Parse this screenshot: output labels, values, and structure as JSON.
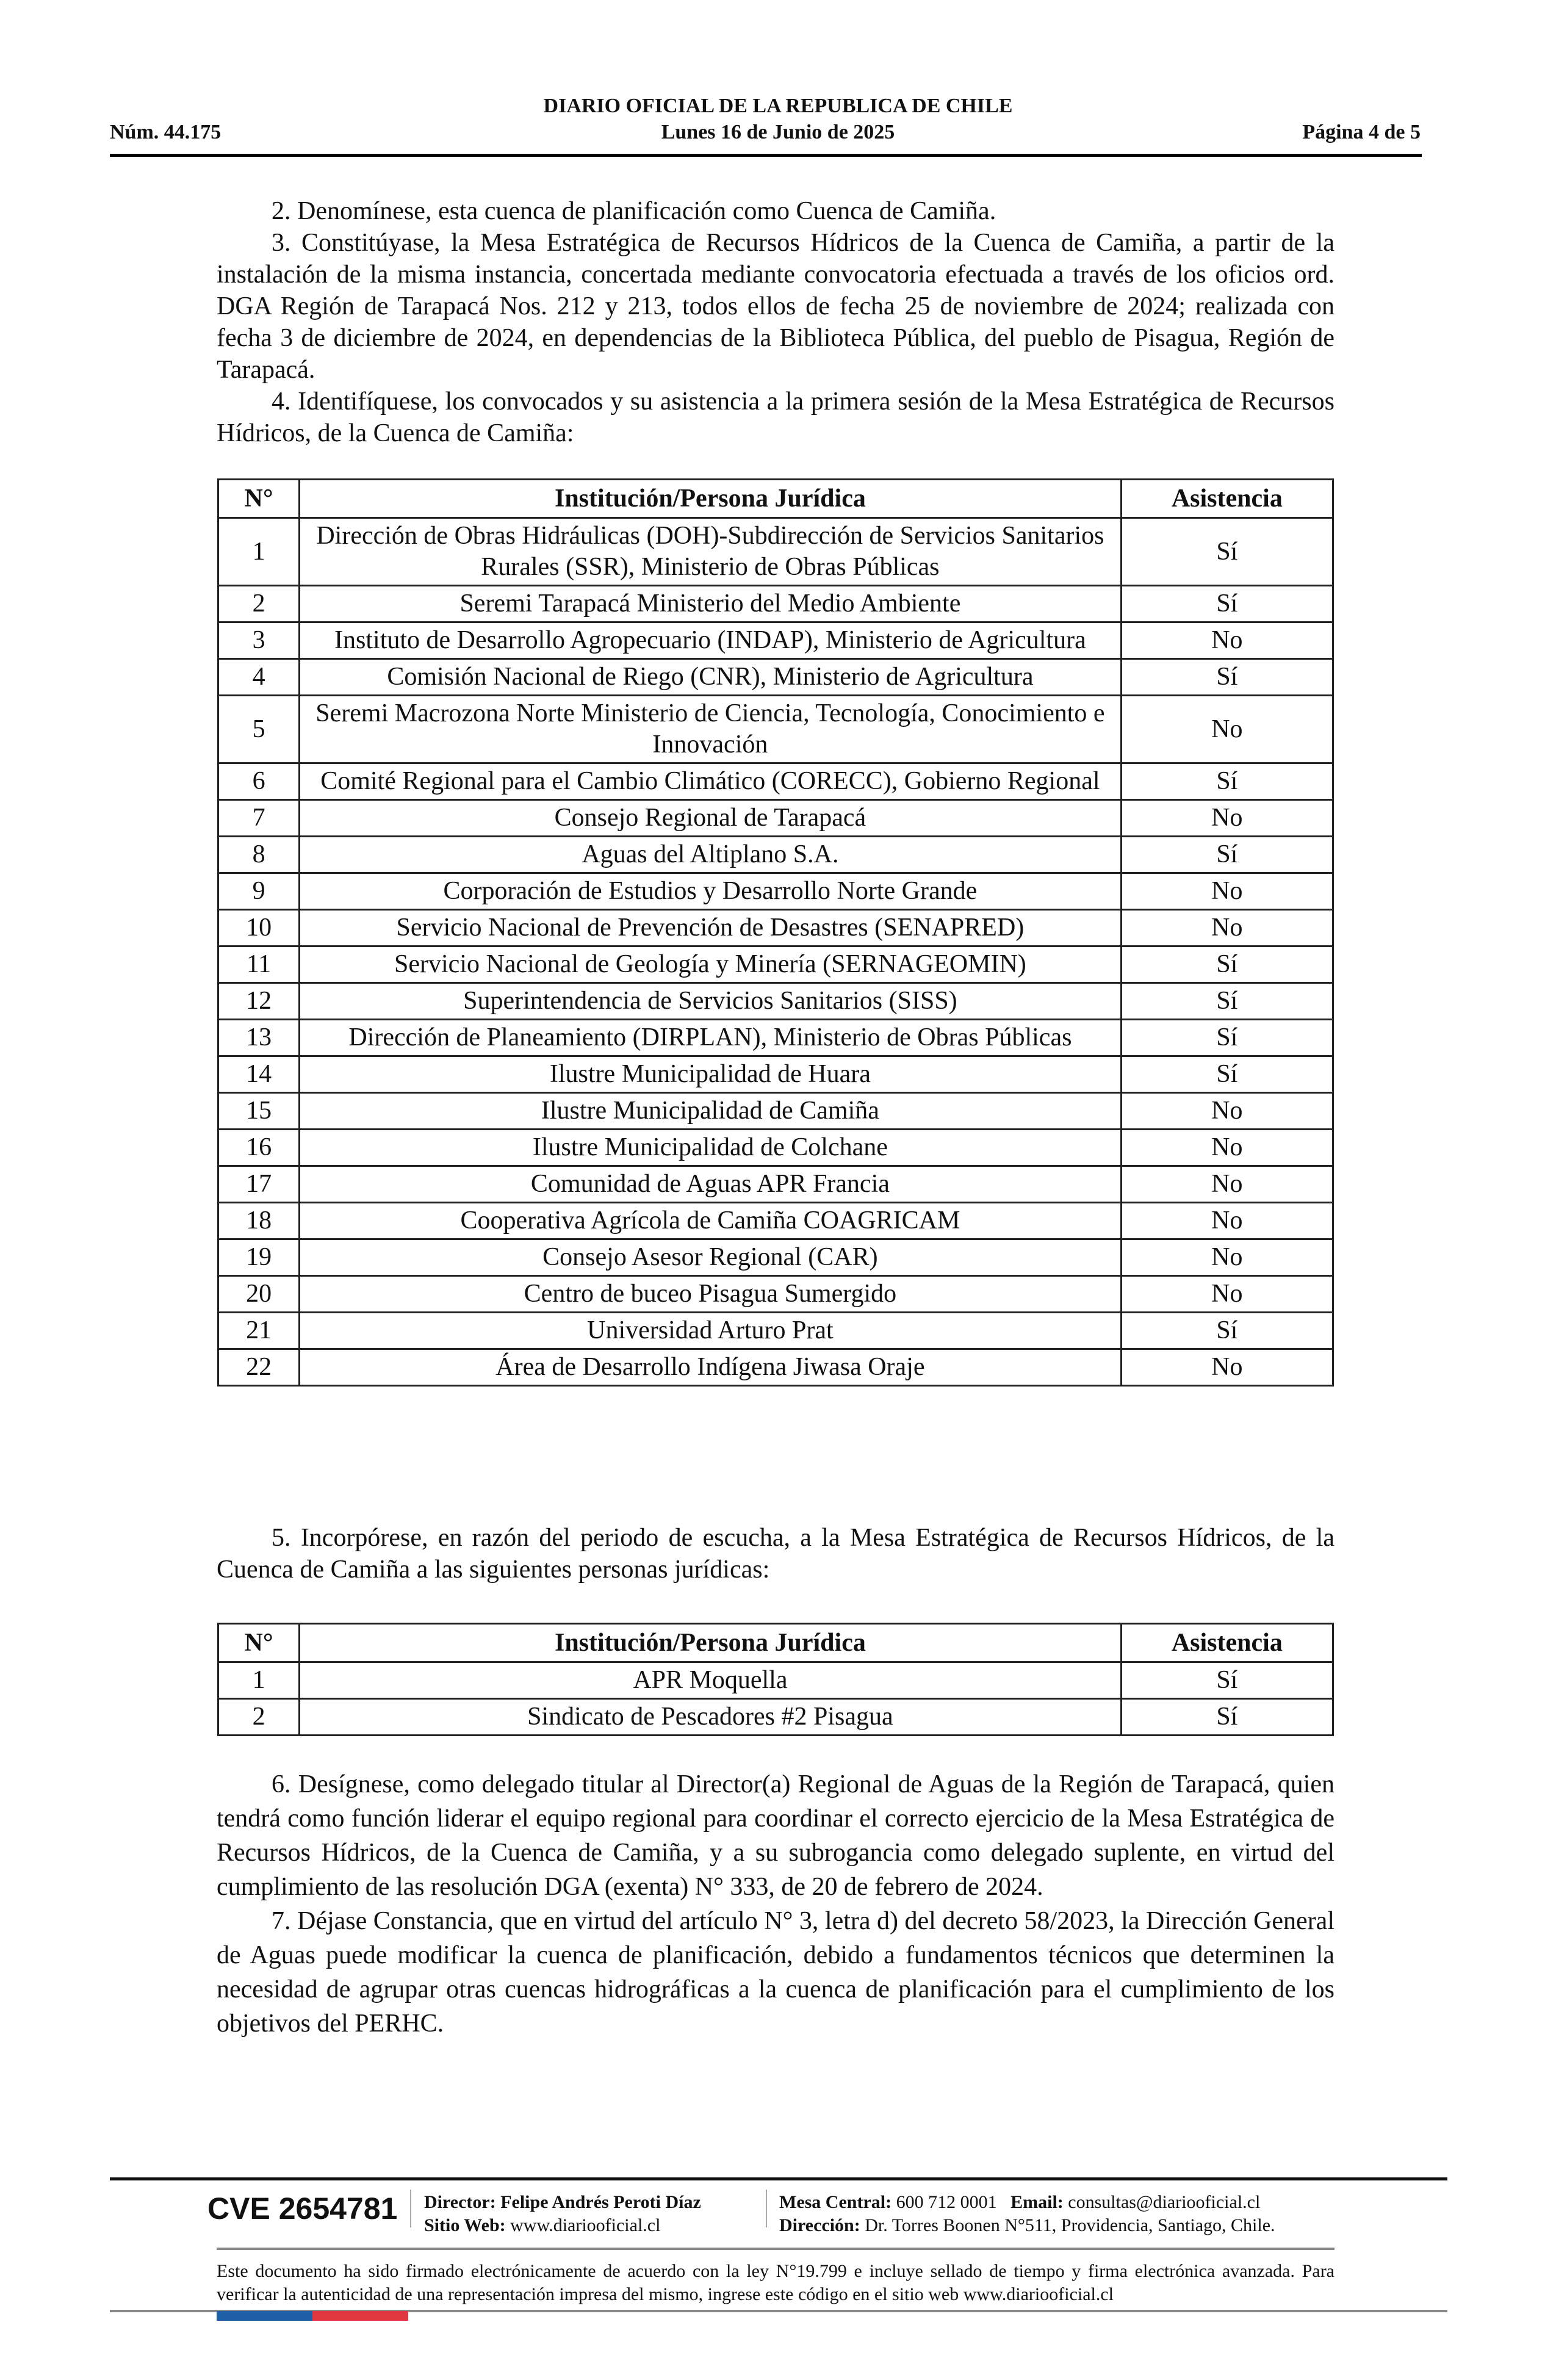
{
  "header": {
    "title": "DIARIO OFICIAL DE LA REPUBLICA DE CHILE",
    "number": "Núm. 44.175",
    "date": "Lunes 16 de Junio de 2025",
    "page": "Página 4 de 5"
  },
  "paragraphs_top": [
    "2. Denomínese, esta cuenca de planificación como Cuenca de Camiña.",
    "3. Constitúyase, la Mesa Estratégica de Recursos Hídricos de la Cuenca de Camiña, a partir de la instalación de la misma instancia, concertada mediante convocatoria efectuada a través de los oficios ord. DGA Región de Tarapacá Nos. 212 y 213, todos ellos de fecha 25 de noviembre de 2024; realizada con fecha 3 de diciembre de 2024, en dependencias de la Biblioteca Pública, del pueblo de Pisagua, Región de Tarapacá.",
    "4. Identifíquese, los convocados y su asistencia a la primera sesión de la Mesa Estratégica de Recursos Hídricos, de la Cuenca de Camiña:"
  ],
  "table1": {
    "headers": [
      "N°",
      "Institución/Persona Jurídica",
      "Asistencia"
    ],
    "rows": [
      [
        "1",
        "Dirección de Obras Hidráulicas (DOH)-Subdirección de Servicios Sanitarios Rurales (SSR), Ministerio de Obras Públicas",
        "Sí"
      ],
      [
        "2",
        "Seremi Tarapacá Ministerio del Medio Ambiente",
        "Sí"
      ],
      [
        "3",
        "Instituto de Desarrollo Agropecuario (INDAP), Ministerio de Agricultura",
        "No"
      ],
      [
        "4",
        "Comisión Nacional de Riego (CNR), Ministerio de Agricultura",
        "Sí"
      ],
      [
        "5",
        "Seremi Macrozona Norte Ministerio de Ciencia, Tecnología, Conocimiento e Innovación",
        "No"
      ],
      [
        "6",
        "Comité Regional para el Cambio Climático (CORECC), Gobierno Regional",
        "Sí"
      ],
      [
        "7",
        "Consejo Regional de Tarapacá",
        "No"
      ],
      [
        "8",
        "Aguas del Altiplano S.A.",
        "Sí"
      ],
      [
        "9",
        "Corporación de Estudios y Desarrollo Norte Grande",
        "No"
      ],
      [
        "10",
        "Servicio Nacional de Prevención de Desastres (SENAPRED)",
        "No"
      ],
      [
        "11",
        "Servicio Nacional de Geología y Minería (SERNAGEOMIN)",
        "Sí"
      ],
      [
        "12",
        "Superintendencia de Servicios Sanitarios (SISS)",
        "Sí"
      ],
      [
        "13",
        "Dirección de Planeamiento (DIRPLAN), Ministerio de Obras Públicas",
        "Sí"
      ],
      [
        "14",
        "Ilustre Municipalidad de Huara",
        "Sí"
      ],
      [
        "15",
        "Ilustre Municipalidad de Camiña",
        "No"
      ],
      [
        "16",
        "Ilustre Municipalidad de Colchane",
        "No"
      ],
      [
        "17",
        "Comunidad de Aguas APR Francia",
        "No"
      ],
      [
        "18",
        "Cooperativa Agrícola de Camiña COAGRICAM",
        "No"
      ],
      [
        "19",
        "Consejo Asesor Regional (CAR)",
        "No"
      ],
      [
        "20",
        "Centro de buceo Pisagua Sumergido",
        "No"
      ],
      [
        "21",
        "Universidad Arturo Prat",
        "Sí"
      ],
      [
        "22",
        "Área de Desarrollo Indígena Jiwasa Oraje",
        "No"
      ]
    ]
  },
  "paragraph5": "5. Incorpórese, en razón del periodo de escucha, a la Mesa Estratégica de Recursos Hídricos, de la Cuenca de Camiña a las siguientes personas jurídicas:",
  "table2": {
    "headers": [
      "N°",
      "Institución/Persona Jurídica",
      "Asistencia"
    ],
    "rows": [
      [
        "1",
        "APR Moquella",
        "Sí"
      ],
      [
        "2",
        "Sindicato de Pescadores #2 Pisagua",
        "Sí"
      ]
    ]
  },
  "paragraphs_bottom": [
    "6. Desígnese, como delegado titular al Director(a) Regional de Aguas de la Región de Tarapacá, quien tendrá como función liderar el equipo regional para coordinar el correcto ejercicio de la Mesa Estratégica de Recursos Hídricos, de la Cuenca de Camiña, y a su subrogancia como delegado suplente, en virtud del cumplimiento de las resolución DGA (exenta) N° 333, de 20 de febrero de 2024.",
    "7. Déjase Constancia, que en virtud del artículo N° 3, letra d) del decreto 58/2023, la Dirección General de Aguas puede modificar la cuenca de planificación, debido a fundamentos técnicos que determinen la necesidad de agrupar otras cuencas hidrográficas a la cuenca de planificación para el cumplimiento de los objetivos del PERHC."
  ],
  "footer": {
    "cve": "CVE 2654781",
    "director_label": "Director:",
    "director": "Felipe Andrés Peroti Díaz",
    "web_label": "Sitio Web:",
    "web": "www.diariooficial.cl",
    "phone_label": "Mesa Central:",
    "phone": "600 712 0001",
    "email_label": "Email:",
    "email": "consultas@diariooficial.cl",
    "address_label": "Dirección:",
    "address": "Dr. Torres Boonen N°511, Providencia, Santiago, Chile.",
    "notice": "Este documento ha sido firmado electrónicamente de acuerdo con la ley N°19.799 e incluye sellado de tiempo y firma electrónica avanzada. Para verificar la autenticidad de una representación impresa del mismo, ingrese este código en el sitio web www.diariooficial.cl",
    "flag_colors": [
      "#1f5fa8",
      "#e0383e"
    ]
  }
}
